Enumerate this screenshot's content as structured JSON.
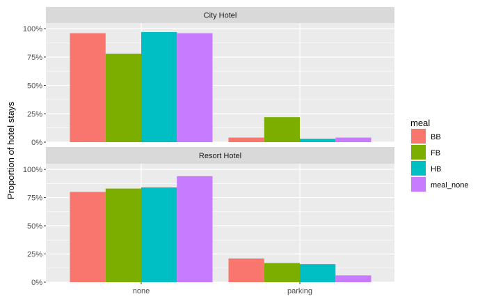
{
  "chart_data": {
    "type": "bar",
    "ylabel": "Proportion of hotel stays",
    "xlabel": "",
    "categories": [
      "none",
      "parking"
    ],
    "y_ticks": [
      "0%",
      "25%",
      "50%",
      "75%",
      "100%"
    ],
    "ylim": [
      0,
      1.05
    ],
    "grid": true,
    "legend": {
      "title": "meal",
      "position": "right",
      "entries": [
        "BB",
        "FB",
        "HB",
        "meal_none"
      ]
    },
    "colors": {
      "BB": "#F8766D",
      "FB": "#7CAE00",
      "HB": "#00BFC4",
      "meal_none": "#C77CFF",
      "panel_bg": "#EBEBEB",
      "strip_bg": "#D9D9D9",
      "grid": "#FFFFFF"
    },
    "panels": [
      {
        "title": "City Hotel",
        "series": [
          {
            "name": "BB",
            "values": [
              0.96,
              0.04
            ]
          },
          {
            "name": "FB",
            "values": [
              0.78,
              0.22
            ]
          },
          {
            "name": "HB",
            "values": [
              0.97,
              0.03
            ]
          },
          {
            "name": "meal_none",
            "values": [
              0.96,
              0.04
            ]
          }
        ]
      },
      {
        "title": "Resort Hotel",
        "series": [
          {
            "name": "BB",
            "values": [
              0.8,
              0.21
            ]
          },
          {
            "name": "FB",
            "values": [
              0.83,
              0.17
            ]
          },
          {
            "name": "HB",
            "values": [
              0.84,
              0.16
            ]
          },
          {
            "name": "meal_none",
            "values": [
              0.94,
              0.06
            ]
          }
        ]
      }
    ]
  }
}
